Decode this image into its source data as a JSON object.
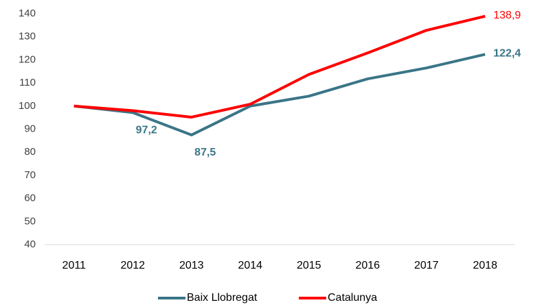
{
  "chart_data": {
    "type": "line",
    "categories": [
      "2011",
      "2012",
      "2013",
      "2014",
      "2015",
      "2016",
      "2017",
      "2018"
    ],
    "series": [
      {
        "name": "Baix Llobregat",
        "color": "#3a7587",
        "values": [
          100,
          97.2,
          87.5,
          100,
          104.3,
          111.8,
          116.5,
          122.4
        ],
        "value_labels": [
          null,
          "97,2",
          "87,5",
          null,
          null,
          null,
          null,
          "122,4"
        ]
      },
      {
        "name": "Catalunya",
        "color": "#ff0000",
        "values": [
          100,
          98,
          95.2,
          100.8,
          113.7,
          123,
          132.8,
          138.9
        ],
        "value_labels": [
          null,
          null,
          null,
          null,
          null,
          null,
          null,
          "138,9"
        ]
      }
    ],
    "ylim": [
      40,
      140
    ],
    "yticks": [
      40,
      50,
      60,
      70,
      80,
      90,
      100,
      110,
      120,
      130,
      140
    ],
    "grid": false,
    "legend": "bottom"
  }
}
